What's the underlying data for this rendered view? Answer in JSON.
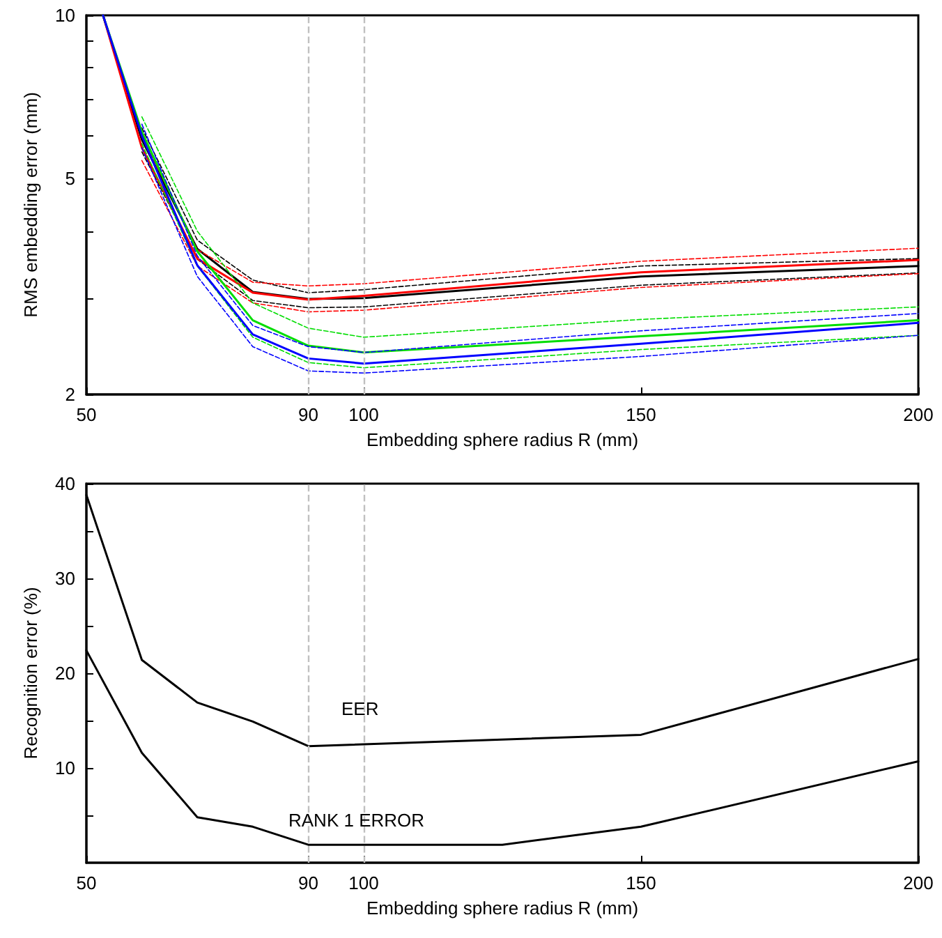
{
  "chart_data": [
    {
      "type": "line",
      "xlabel": "Embedding sphere radius R (mm)",
      "ylabel": "RMS embedding error (mm)",
      "log": true,
      "grid": false,
      "xlim": [
        50,
        200
      ],
      "xticks": [
        50,
        90,
        100,
        150,
        200
      ],
      "ylim": [
        2,
        10
      ],
      "yticks": [
        2,
        {
          "value": 3,
          "label": null
        },
        {
          "value": 4,
          "label": null
        },
        5,
        {
          "value": 6,
          "label": null
        },
        {
          "value": 7,
          "label": null
        },
        {
          "value": 8,
          "label": null
        },
        {
          "value": 9,
          "label": null
        },
        10
      ],
      "x": [
        53,
        60,
        70,
        80,
        90,
        100,
        150,
        200
      ],
      "series": [
        {
          "color": "#000000",
          "values": [
            10,
            5.9,
            3.71,
            3.09,
            3.0,
            3.01,
            3.3,
            3.45
          ]
        },
        {
          "color": "#000000",
          "line_style": "dashed",
          "values": [
            null,
            5.6,
            3.55,
            2.98,
            2.89,
            2.9,
            3.18,
            3.35
          ]
        },
        {
          "color": "#000000",
          "line_style": "dashed",
          "values": [
            null,
            6.2,
            3.85,
            3.25,
            3.08,
            3.12,
            3.45,
            3.56
          ]
        },
        {
          "color": "#ff0000",
          "values": [
            10,
            5.7,
            3.56,
            3.08,
            2.99,
            3.04,
            3.36,
            3.54
          ]
        },
        {
          "color": "#ff0000",
          "line_style": "dashed",
          "values": [
            null,
            5.4,
            3.45,
            2.95,
            2.84,
            2.86,
            3.15,
            3.34
          ]
        },
        {
          "color": "#ff0000",
          "line_style": "dashed",
          "values": [
            null,
            6.0,
            3.7,
            3.22,
            3.17,
            3.2,
            3.52,
            3.72
          ]
        },
        {
          "color": "#00dd00",
          "values": [
            10,
            6.1,
            3.67,
            2.74,
            2.46,
            2.39,
            2.56,
            2.74
          ]
        },
        {
          "color": "#00dd00",
          "line_style": "dashed",
          "values": [
            null,
            5.8,
            3.45,
            2.55,
            2.29,
            2.24,
            2.42,
            2.57
          ]
        },
        {
          "color": "#00dd00",
          "line_style": "dashed",
          "values": [
            null,
            6.5,
            4.0,
            2.95,
            2.65,
            2.55,
            2.75,
            2.9
          ]
        },
        {
          "color": "#0000ff",
          "values": [
            10,
            6.0,
            3.46,
            2.58,
            2.33,
            2.28,
            2.48,
            2.71
          ]
        },
        {
          "color": "#0000ff",
          "line_style": "dashed",
          "values": [
            null,
            5.7,
            3.3,
            2.45,
            2.21,
            2.19,
            2.35,
            2.57
          ]
        },
        {
          "color": "#0000ff",
          "line_style": "dashed",
          "values": [
            null,
            6.3,
            3.6,
            2.68,
            2.45,
            2.39,
            2.62,
            2.82
          ]
        }
      ],
      "ref_lines": [
        {
          "axis": "x",
          "value": 90,
          "color": "#c0c0c0",
          "line_style": "dashed"
        },
        {
          "axis": "x",
          "value": 100,
          "color": "#c0c0c0",
          "line_style": "dashed"
        }
      ]
    },
    {
      "type": "line",
      "xlabel": "Embedding sphere radius R (mm)",
      "ylabel": "Recognition error (%)",
      "grid": false,
      "xlim": [
        50,
        200
      ],
      "xticks": [
        50,
        90,
        100,
        150,
        200
      ],
      "ylim": [
        0,
        40
      ],
      "yticks": [
        {
          "value": 5,
          "label": null
        },
        10,
        {
          "value": 15,
          "label": null
        },
        20,
        {
          "value": 25,
          "label": null
        },
        30,
        {
          "value": 35,
          "label": null
        },
        40
      ],
      "series": [
        {
          "color": "#000000",
          "x": [
            50,
            60,
            70,
            80,
            90,
            150,
            200
          ],
          "values": [
            38.8,
            21.4,
            16.9,
            14.9,
            12.3,
            13.5,
            21.5
          ]
        },
        {
          "color": "#000000",
          "x": [
            50,
            60,
            70,
            80,
            90,
            125,
            150,
            200
          ],
          "values": [
            22.4,
            11.6,
            4.8,
            3.8,
            1.9,
            1.9,
            3.8,
            10.7
          ]
        }
      ],
      "annotations": [
        "EER",
        "RANK 1 ERROR"
      ],
      "ref_lines": [
        {
          "axis": "x",
          "value": 90,
          "color": "#c0c0c0",
          "line_style": "dashed"
        },
        {
          "axis": "x",
          "value": 100,
          "color": "#c0c0c0",
          "line_style": "dashed"
        }
      ]
    }
  ]
}
